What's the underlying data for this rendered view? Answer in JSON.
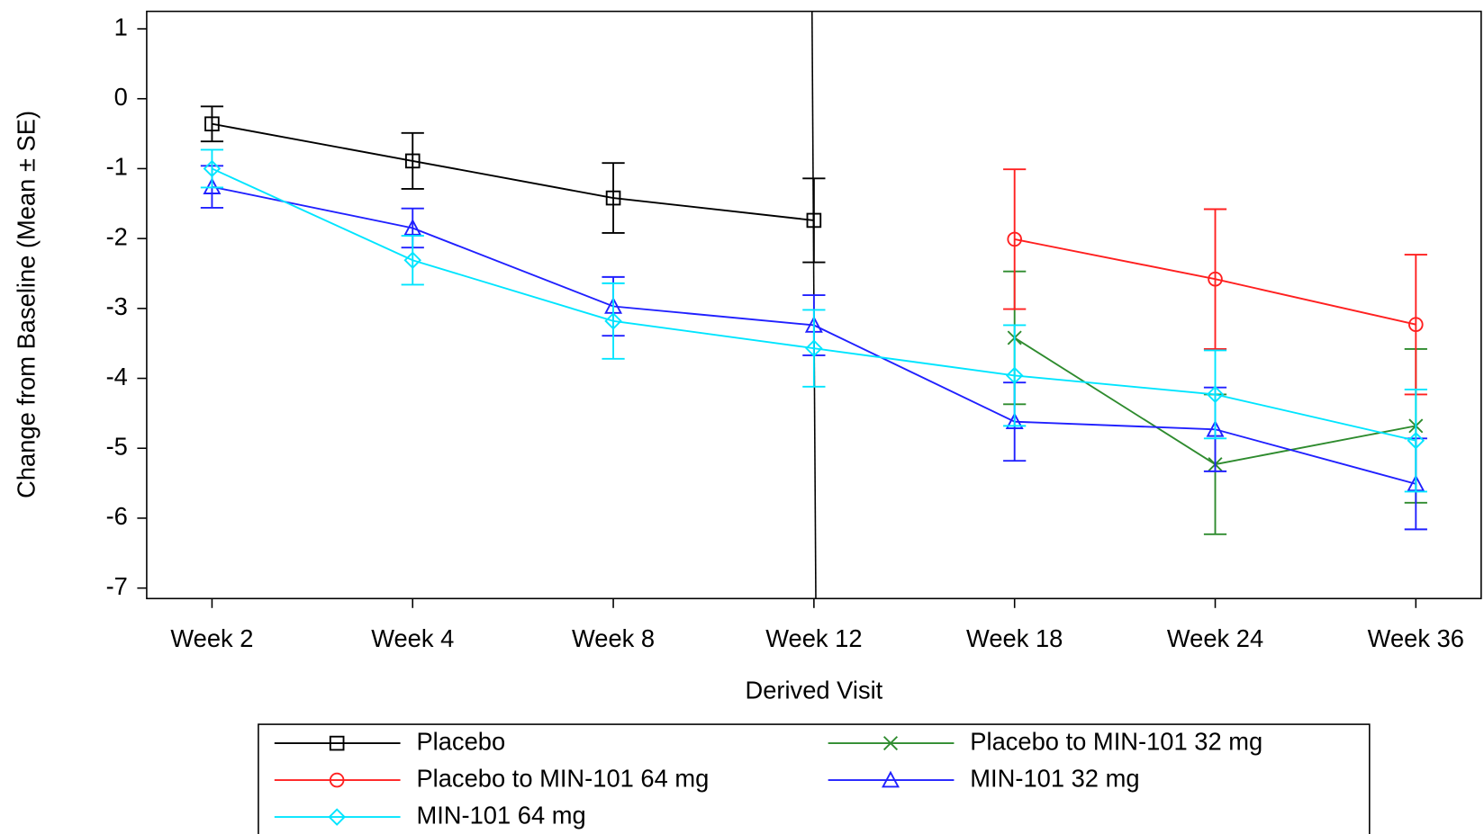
{
  "chart_data": {
    "type": "line",
    "x_label": "Derived Visit",
    "y_label": "Change from Baseline (Mean ± SE)",
    "categories": [
      "Week 2",
      "Week 4",
      "Week 8",
      "Week 12",
      "Week 18",
      "Week 24",
      "Week 36"
    ],
    "reference_line_category": "Week 12",
    "ylim": [
      -7.15,
      1.25
    ],
    "yticks": [
      -7,
      -6,
      -5,
      -4,
      -3,
      -2,
      -1,
      0,
      1
    ],
    "legend": "bottom",
    "series": [
      {
        "name": "Placebo",
        "color": "#000000",
        "marker": "square",
        "values": [
          -0.36,
          -0.89,
          -1.42,
          -1.74,
          null,
          null,
          null
        ],
        "errors": [
          0.25,
          0.4,
          0.5,
          0.6,
          null,
          null,
          null
        ]
      },
      {
        "name": "Placebo to MIN-101 32 mg",
        "color": "#2e8b2e",
        "marker": "x",
        "values": [
          null,
          null,
          null,
          null,
          -3.42,
          -5.23,
          -4.68
        ],
        "errors": [
          null,
          null,
          null,
          null,
          0.95,
          1.0,
          1.1
        ]
      },
      {
        "name": "Placebo to MIN-101 64 mg",
        "color": "#ff2020",
        "marker": "circle",
        "values": [
          null,
          null,
          null,
          null,
          -2.01,
          -2.58,
          -3.23
        ],
        "errors": [
          null,
          null,
          null,
          null,
          1.0,
          1.0,
          1.0
        ]
      },
      {
        "name": "MIN-101 32 mg",
        "color": "#2020ff",
        "marker": "triangle",
        "values": [
          -1.26,
          -1.85,
          -2.97,
          -3.24,
          -4.62,
          -4.73,
          -5.51
        ],
        "errors": [
          0.3,
          0.28,
          0.42,
          0.43,
          0.56,
          0.6,
          0.65
        ]
      },
      {
        "name": "MIN-101 64 mg",
        "color": "#00e5ff",
        "marker": "diamond",
        "values": [
          -1.0,
          -2.31,
          -3.18,
          -3.57,
          -3.96,
          -4.23,
          -4.89
        ],
        "errors": [
          0.27,
          0.35,
          0.54,
          0.55,
          0.72,
          0.63,
          0.73
        ]
      }
    ]
  }
}
